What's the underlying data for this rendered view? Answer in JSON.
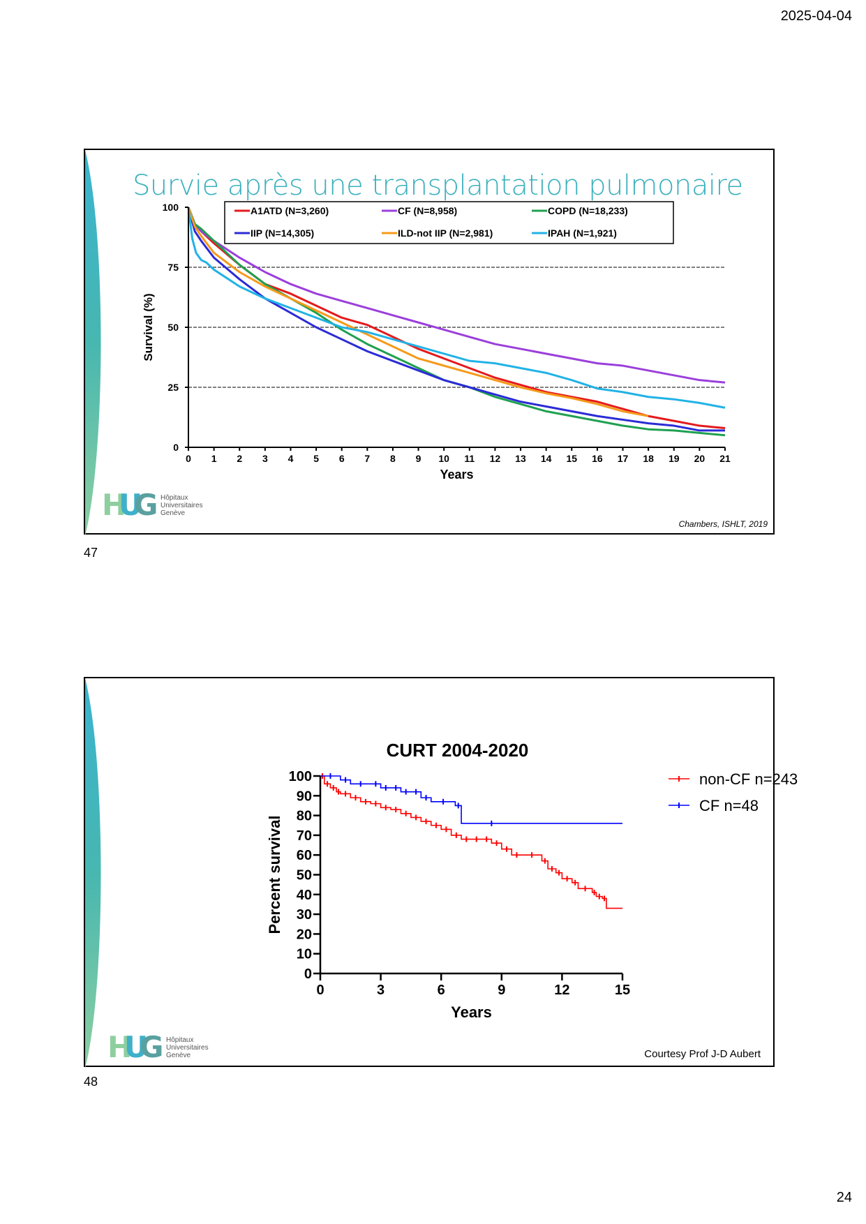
{
  "header": {
    "date": "2025-04-04"
  },
  "footer": {
    "page_number": "24"
  },
  "slides": [
    {
      "number": "47",
      "title": "Survie après une transplantation pulmonaire",
      "credit": "Chambers, ISHLT, 2019",
      "logo": {
        "lines": [
          "Hôpitaux",
          "Universitaires",
          "Genève"
        ]
      }
    },
    {
      "number": "48",
      "credit": "Courtesy Prof J-D Aubert",
      "logo": {
        "lines": [
          "Hôpitaux",
          "Universitaires",
          "Genève"
        ]
      }
    }
  ],
  "chart_data": [
    {
      "type": "line",
      "xlabel": "Years",
      "ylabel": "Survival (%)",
      "xlim": [
        0,
        21
      ],
      "ylim": [
        0,
        100
      ],
      "xticks": [
        0,
        1,
        2,
        3,
        4,
        5,
        6,
        7,
        8,
        9,
        10,
        11,
        12,
        13,
        14,
        15,
        16,
        17,
        18,
        19,
        20,
        21
      ],
      "yticks": [
        0,
        25,
        50,
        75,
        100
      ],
      "gridlines_y": [
        25,
        50,
        75
      ],
      "legend_position": "top",
      "series": [
        {
          "name": "A1ATD (N=3,260)",
          "color": "#e41a1c",
          "x": [
            0,
            0.25,
            0.5,
            1,
            2,
            3,
            4,
            5,
            6,
            7,
            8,
            9,
            10,
            11,
            12,
            13,
            14,
            15,
            16,
            17,
            18,
            19,
            20,
            21
          ],
          "y": [
            100,
            93,
            90,
            85,
            76,
            68,
            64,
            59,
            54,
            51,
            46,
            41,
            37,
            33,
            29,
            26,
            23,
            21,
            19,
            16,
            13,
            11,
            9,
            8
          ]
        },
        {
          "name": "CF (N=8,958)",
          "color": "#9b3fdb",
          "x": [
            0,
            0.25,
            0.5,
            1,
            2,
            3,
            4,
            5,
            6,
            7,
            8,
            9,
            10,
            11,
            12,
            13,
            14,
            15,
            16,
            17,
            18,
            19,
            20,
            21
          ],
          "y": [
            100,
            93,
            90,
            86,
            79,
            73,
            68,
            64,
            61,
            58,
            55,
            52,
            49,
            46,
            43,
            41,
            39,
            37,
            35,
            34,
            32,
            30,
            28,
            27
          ]
        },
        {
          "name": "COPD (N=18,233)",
          "color": "#1fa050",
          "x": [
            0,
            0.25,
            0.5,
            1,
            2,
            3,
            4,
            5,
            6,
            7,
            8,
            9,
            10,
            11,
            12,
            13,
            14,
            15,
            16,
            17,
            18,
            19,
            20,
            21
          ],
          "y": [
            100,
            93,
            91,
            86,
            76,
            68,
            62,
            56,
            49,
            43,
            38,
            33,
            28,
            25,
            21,
            18,
            15,
            13,
            11,
            9,
            7.5,
            7,
            6,
            5
          ]
        },
        {
          "name": "IIP (N=14,305)",
          "color": "#2b2bd6",
          "x": [
            0,
            0.25,
            0.5,
            1,
            2,
            3,
            4,
            5,
            6,
            7,
            8,
            9,
            10,
            11,
            12,
            13,
            14,
            15,
            16,
            17,
            18,
            19,
            20,
            21
          ],
          "y": [
            100,
            90,
            86,
            79,
            70,
            62,
            56,
            50,
            45,
            40,
            36,
            32,
            28,
            25,
            22,
            19,
            17,
            15,
            13,
            11.5,
            10,
            9,
            7,
            7
          ]
        },
        {
          "name": "ILD-not IIP (N=2,981)",
          "color": "#f59a1b",
          "x": [
            0,
            0.25,
            0.5,
            1,
            2,
            3,
            4,
            5,
            6,
            7,
            8,
            9,
            10,
            11,
            12,
            13,
            14,
            15,
            16,
            17,
            18
          ],
          "y": [
            100,
            92,
            88,
            81,
            73,
            67,
            62,
            57,
            52,
            47,
            42,
            37,
            34,
            31,
            28,
            25,
            22.5,
            20.5,
            18,
            15,
            13
          ]
        },
        {
          "name": "IPAH (N=1,921)",
          "color": "#21b2e6",
          "x": [
            0,
            0.15,
            0.3,
            0.5,
            0.7,
            1,
            2,
            3,
            4,
            5,
            6,
            7,
            8,
            9,
            10,
            11,
            12,
            13,
            14,
            15,
            16,
            17,
            18,
            19,
            20,
            21
          ],
          "y": [
            100,
            87,
            81,
            78,
            77,
            74,
            67,
            62,
            58,
            54,
            50,
            48,
            45,
            42,
            39,
            36,
            35,
            33,
            31,
            28,
            24.5,
            23,
            21,
            20,
            18.5,
            16.5
          ]
        }
      ]
    },
    {
      "type": "line",
      "title": "CURT 2004-2020",
      "xlabel": "Years",
      "ylabel": "Percent survival",
      "xlim": [
        0,
        15
      ],
      "ylim": [
        0,
        100
      ],
      "xticks": [
        0,
        3,
        6,
        9,
        12,
        15
      ],
      "yticks": [
        0,
        10,
        20,
        30,
        40,
        50,
        60,
        70,
        80,
        90,
        100
      ],
      "legend_position": "right",
      "series": [
        {
          "name": "non-CF n=243",
          "color": "#ff0000",
          "step": true,
          "x": [
            0,
            0.2,
            0.5,
            0.8,
            1,
            1.5,
            2,
            2.5,
            3,
            3.5,
            4,
            4.5,
            5,
            5.5,
            6,
            6.5,
            7,
            7.5,
            8,
            8.5,
            9,
            9.5,
            10,
            11,
            11.3,
            11.7,
            12,
            12.5,
            12.8,
            13.5,
            13.7,
            14,
            14.2,
            15
          ],
          "y": [
            100,
            96,
            94,
            92,
            91,
            89,
            87,
            86,
            84,
            83,
            81,
            79,
            77,
            75,
            73,
            70,
            68,
            68,
            68,
            66,
            63,
            60,
            60,
            57,
            53,
            51,
            48,
            46,
            43,
            41,
            39,
            38,
            33,
            33
          ]
        },
        {
          "name": "CF n=48",
          "color": "#0000ff",
          "step": true,
          "x": [
            0,
            1,
            1.5,
            2.5,
            3,
            3.5,
            4,
            4.5,
            5,
            5.5,
            6.7,
            7,
            10,
            15
          ],
          "y": [
            100,
            98,
            96,
            96,
            94,
            94,
            92,
            92,
            89,
            87,
            85,
            76,
            76,
            76
          ]
        }
      ]
    }
  ]
}
